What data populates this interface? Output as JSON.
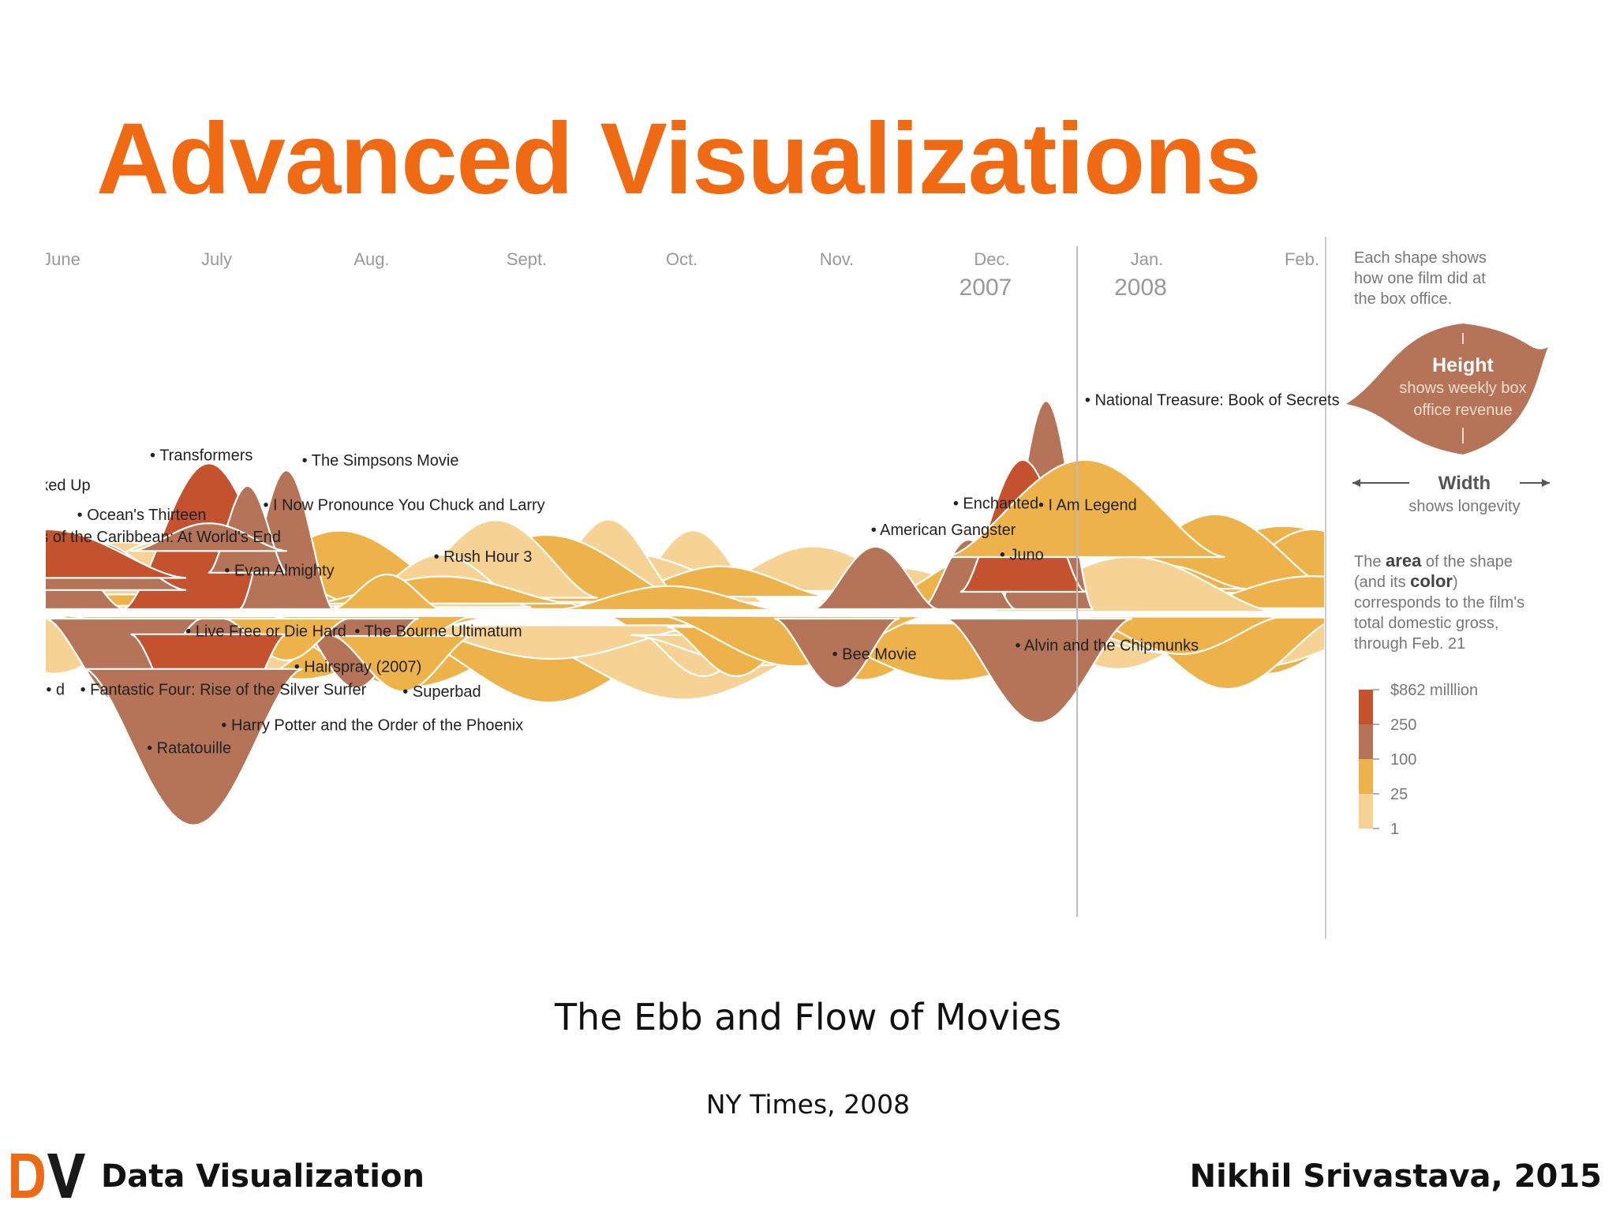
{
  "slide": {
    "title": "Advanced Visualizations",
    "caption": "The Ebb and Flow of Movies",
    "source": "NY Times, 2008"
  },
  "footer": {
    "logo_text": "DV",
    "left": "Data Visualization",
    "right": "Nikhil Srivastava, 2015"
  },
  "colors": {
    "title": "#f06a14",
    "tier_top": "#c4522e",
    "tier_high": "#b57458",
    "tier_mid": "#eeb24b",
    "tier_low": "#f6d394",
    "logo_d": "#f06a14",
    "logo_v": "#1a1a1a"
  },
  "chart_data": {
    "type": "area",
    "subtype": "streamgraph",
    "months": [
      "June",
      "July",
      "Aug.",
      "Sept.",
      "Oct.",
      "Nov.",
      "Dec.",
      "Jan.",
      "Feb."
    ],
    "year_labels": [
      {
        "month": "Dec.",
        "year": "2007"
      },
      {
        "month": "Jan.",
        "year": "2008"
      }
    ],
    "legend": {
      "intro": [
        "Each shape shows",
        "how one film did at",
        "the box office."
      ],
      "height_title": "Height",
      "height_desc": [
        "shows weekly box",
        "office revenue"
      ],
      "width_title": "Width",
      "width_desc": "shows longevity",
      "area_desc": {
        "line1": {
          "pre": "The ",
          "bold": "area",
          "post": " of the shape"
        },
        "line2": {
          "pre": "(and its ",
          "bold": "color",
          "post": ")"
        },
        "line3": "corresponds to the film's",
        "line4": "total domestic gross,",
        "line5": "through Feb. 21"
      },
      "scale": [
        {
          "label": "$862 milllion",
          "tier": "top"
        },
        {
          "label": "250",
          "tier": "high"
        },
        {
          "label": "100",
          "tier": "mid"
        },
        {
          "label": "25",
          "tier": "low"
        },
        {
          "label": "1",
          "tier": "low"
        }
      ]
    },
    "films": [
      {
        "name": "Transformers",
        "month": 0.95,
        "side": "top",
        "peak": 0.42,
        "width": 0.55,
        "tier": "top"
      },
      {
        "name": "The Simpsons Movie",
        "month": 1.45,
        "side": "top",
        "peak": 0.4,
        "width": 0.3,
        "tier": "high"
      },
      {
        "name": "Knocked Up",
        "month": -0.1,
        "side": "top",
        "peak": 0.22,
        "width": 0.5,
        "tier": "high"
      },
      {
        "name": "I Now Pronounce You Chuck and Larry",
        "month": 1.2,
        "side": "top",
        "peak": 0.25,
        "width": 0.25,
        "tier": "high"
      },
      {
        "name": "Ocean's Thirteen",
        "month": 0.2,
        "side": "top",
        "peak": 0.14,
        "width": 0.6,
        "tier": "high"
      },
      {
        "name": "Pirates of the Caribbean: At World's End",
        "month": -0.1,
        "side": "top",
        "peak": 0.14,
        "width": 0.9,
        "tier": "top"
      },
      {
        "name": "Evan Almighty",
        "month": 0.95,
        "side": "top",
        "peak": 0.08,
        "width": 0.5,
        "tier": "high"
      },
      {
        "name": "Rush Hour 3",
        "month": 2.1,
        "side": "top",
        "peak": 0.1,
        "width": 0.35,
        "tier": "mid"
      },
      {
        "name": "National Treasure: Book of Secrets",
        "month": 6.35,
        "side": "top",
        "peak": 0.6,
        "width": 0.3,
        "tier": "high"
      },
      {
        "name": "Enchanted",
        "month": 5.85,
        "side": "top",
        "peak": 0.2,
        "width": 0.3,
        "tier": "high"
      },
      {
        "name": "I Am Legend",
        "month": 6.2,
        "side": "top",
        "peak": 0.38,
        "width": 0.4,
        "tier": "top"
      },
      {
        "name": "American Gangster",
        "month": 5.25,
        "side": "top",
        "peak": 0.18,
        "width": 0.4,
        "tier": "high"
      },
      {
        "name": "Juno",
        "month": 6.6,
        "side": "top",
        "peak": 0.28,
        "width": 0.9,
        "tier": "mid"
      },
      {
        "name": "Live Free or Die Hard",
        "month": 0.75,
        "side": "bottom",
        "peak": 0.18,
        "width": 0.6,
        "tier": "high"
      },
      {
        "name": "The Bourne Ultimatum",
        "month": 1.9,
        "side": "bottom",
        "peak": 0.2,
        "width": 0.4,
        "tier": "high"
      },
      {
        "name": "Hairspray (2007)",
        "month": 1.45,
        "side": "bottom",
        "peak": 0.12,
        "width": 0.4,
        "tier": "mid"
      },
      {
        "name": "Fantastic Four: Rise of the Silver Surfer",
        "month": 0.4,
        "side": "bottom",
        "peak": 0.25,
        "width": 0.5,
        "tier": "high"
      },
      {
        "name": "Superbad",
        "month": 2.2,
        "side": "bottom",
        "peak": 0.16,
        "width": 0.45,
        "tier": "mid"
      },
      {
        "name": "Harry Potter and the Order of the Phoenix",
        "month": 0.95,
        "side": "bottom",
        "peak": 0.4,
        "width": 0.5,
        "tier": "top"
      },
      {
        "name": "Ratatouille",
        "month": 0.85,
        "side": "bottom",
        "peak": 0.45,
        "width": 0.7,
        "tier": "high"
      },
      {
        "name": "Bee Movie",
        "month": 5.0,
        "side": "bottom",
        "peak": 0.2,
        "width": 0.4,
        "tier": "high"
      },
      {
        "name": "Alvin and the Chipmunks",
        "month": 6.3,
        "side": "bottom",
        "peak": 0.3,
        "width": 0.6,
        "tier": "high"
      }
    ],
    "labels": [
      {
        "text": "Transformers",
        "month": 0.57,
        "y": 0.315
      },
      {
        "text": "The Simpsons Movie",
        "month": 1.55,
        "y": 0.322
      },
      {
        "text": "ked Up",
        "month": -0.2,
        "y": 0.357
      },
      {
        "text": "I Now Pronounce You Chuck and Larry",
        "month": 1.3,
        "y": 0.385
      },
      {
        "text": "Ocean's Thirteen",
        "month": 0.1,
        "y": 0.399
      },
      {
        "text": "s of the Caribbean: At World's End",
        "month": -0.2,
        "y": 0.43
      },
      {
        "text": "Evan Almighty",
        "month": 1.05,
        "y": 0.477
      },
      {
        "text": "Rush Hour 3",
        "month": 2.4,
        "y": 0.458
      },
      {
        "text": "National Treasure: Book of Secrets",
        "month": 6.6,
        "y": 0.237
      },
      {
        "text": "Enchanted",
        "month": 5.75,
        "y": 0.383
      },
      {
        "text": "I Am Legend",
        "month": 6.3,
        "y": 0.385
      },
      {
        "text": "American Gangster",
        "month": 5.22,
        "y": 0.42
      },
      {
        "text": "Juno",
        "month": 6.05,
        "y": 0.455
      },
      {
        "text": "Live Free or Die Hard",
        "month": 0.8,
        "y": 0.563
      },
      {
        "text": "The Bourne Ultimatum",
        "month": 1.89,
        "y": 0.563
      },
      {
        "text": "Hairspray (2007)",
        "month": 1.5,
        "y": 0.613
      },
      {
        "text": "Fantastic Four: Rise of the Silver Surfer",
        "month": 0.12,
        "y": 0.645
      },
      {
        "text": "Superbad",
        "month": 2.2,
        "y": 0.648
      },
      {
        "text": "Harry Potter and the Order of the Phoenix",
        "month": 1.03,
        "y": 0.695
      },
      {
        "text": "Ratatouille",
        "month": 0.55,
        "y": 0.727
      },
      {
        "text": "Bee Movie",
        "month": 4.97,
        "y": 0.595
      },
      {
        "text": "Alvin and the Chipmunks",
        "month": 6.15,
        "y": 0.583
      },
      {
        "text": "d",
        "month": -0.1,
        "y": 0.645
      }
    ]
  }
}
